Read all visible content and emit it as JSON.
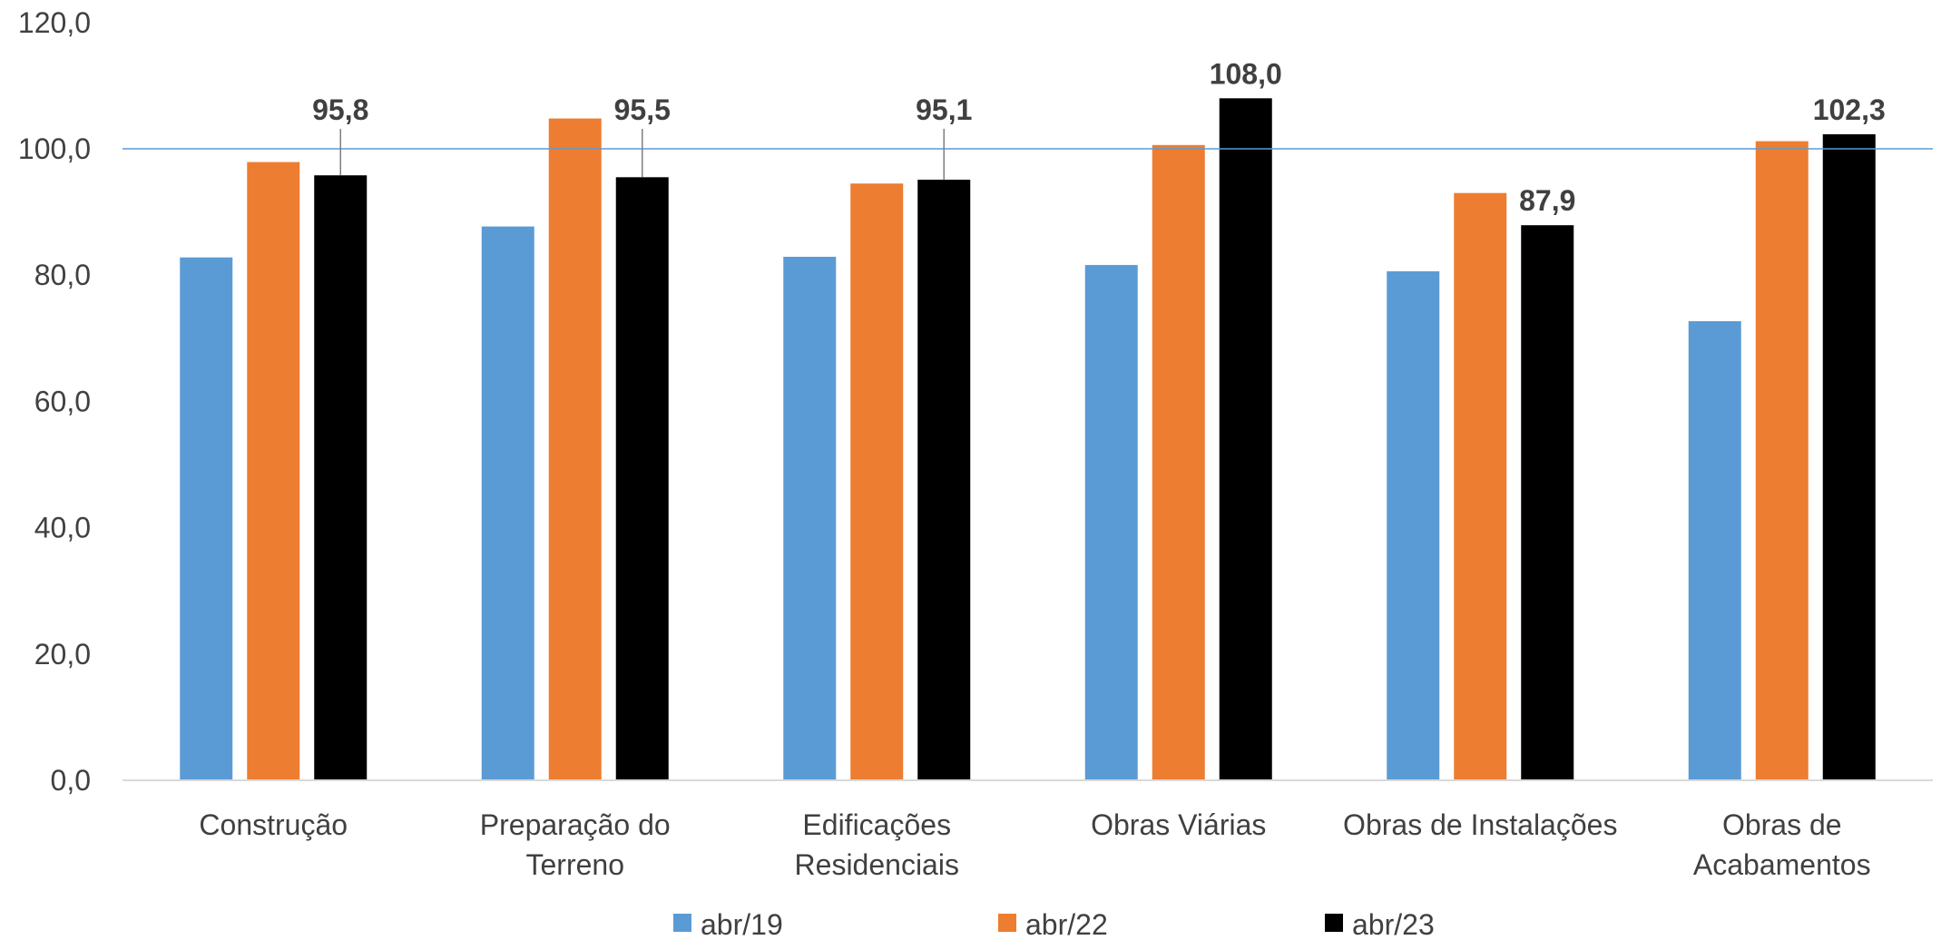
{
  "chart_data": {
    "type": "bar",
    "categories": [
      [
        "Construção"
      ],
      [
        "Preparação do",
        "Terreno"
      ],
      [
        "Edificações",
        "Residenciais"
      ],
      [
        "Obras Viárias"
      ],
      [
        "Obras de Instalações"
      ],
      [
        "Obras de",
        "Acabamentos"
      ]
    ],
    "series": [
      {
        "name": "abr/19",
        "color": "#5B9BD5",
        "values": [
          82.8,
          87.7,
          82.9,
          81.6,
          80.6,
          72.7
        ]
      },
      {
        "name": "abr/22",
        "color": "#ED7D31",
        "values": [
          97.9,
          104.8,
          94.5,
          100.6,
          93.0,
          101.2
        ]
      },
      {
        "name": "abr/23",
        "color": "#000000",
        "values": [
          95.8,
          95.5,
          95.1,
          108.0,
          87.9,
          102.3
        ]
      }
    ],
    "data_labels": {
      "series": "abr/23",
      "texts": [
        "95,8",
        "95,5",
        "95,1",
        "108,0",
        "87,9",
        "102,3"
      ]
    },
    "ylim": [
      0,
      120
    ],
    "y_ticks": [
      0,
      20,
      40,
      60,
      80,
      100,
      120
    ],
    "y_tick_labels": [
      "0,0",
      "20,0",
      "40,0",
      "60,0",
      "80,0",
      "100,0",
      "120,0"
    ],
    "reference_line": {
      "value": 100,
      "color": "#5B9BD5"
    },
    "grid": false,
    "legend_position": "bottom",
    "title": "",
    "xlabel": "",
    "ylabel": ""
  }
}
